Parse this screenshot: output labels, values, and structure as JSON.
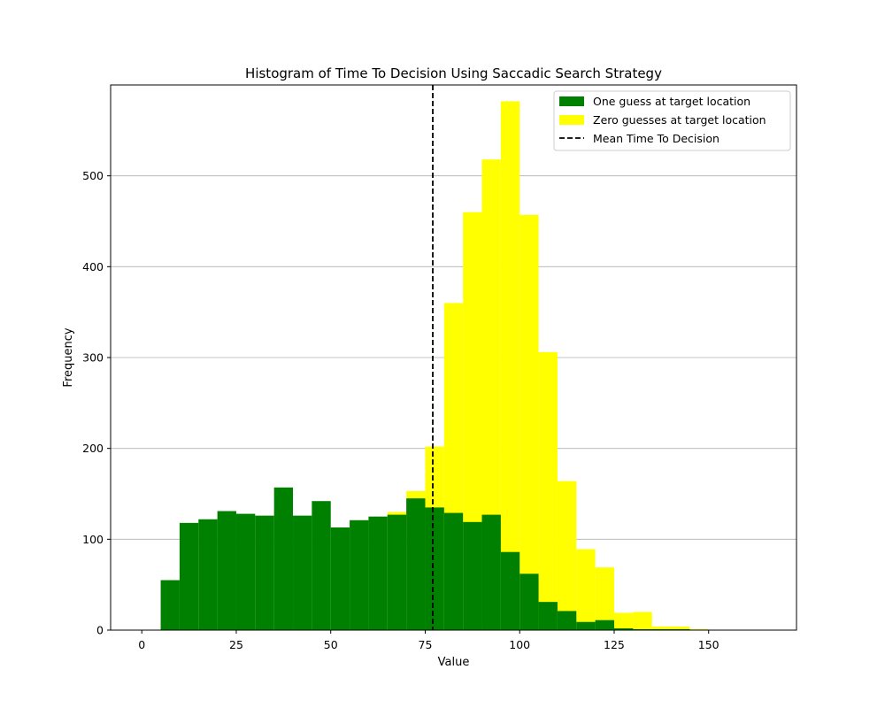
{
  "chart_data": {
    "type": "bar",
    "title": "Histogram of Time To Decision Using Saccadic Search Strategy",
    "xlabel": "Value",
    "ylabel": "Frequency",
    "xlim": [
      -8.25,
      173.25
    ],
    "ylim": [
      0,
      600
    ],
    "xticks": [
      0,
      25,
      50,
      75,
      100,
      125,
      150
    ],
    "yticks": [
      0,
      100,
      200,
      300,
      400,
      500
    ],
    "grid": "horizontal",
    "legend_position": "top-right",
    "bin_edges": [
      0,
      5,
      10,
      15,
      20,
      25,
      30,
      35,
      40,
      45,
      50,
      55,
      60,
      65,
      70,
      75,
      80,
      85,
      90,
      95,
      100,
      105,
      110,
      115,
      120,
      125,
      130,
      135,
      140,
      145,
      150,
      155,
      160,
      165
    ],
    "mean_line": {
      "name": "Mean Time To Decision",
      "x": 77,
      "color": "#000000",
      "style": "dashed"
    },
    "series": [
      {
        "name": "Zero guesses at target location",
        "color": "#ffff00",
        "values": [
          0,
          0,
          0,
          0,
          0,
          0,
          0,
          0,
          0,
          0,
          0,
          0,
          0,
          130,
          153,
          202,
          360,
          460,
          518,
          582,
          457,
          306,
          164,
          89,
          69,
          19,
          20,
          4,
          4,
          1,
          0,
          0,
          0
        ]
      },
      {
        "name": "One guess at target location",
        "color": "#008000",
        "values": [
          0,
          55,
          118,
          122,
          131,
          128,
          126,
          157,
          126,
          142,
          113,
          121,
          125,
          127,
          145,
          135,
          129,
          119,
          127,
          86,
          62,
          31,
          21,
          9,
          11,
          2,
          1,
          1,
          1,
          0,
          0,
          0,
          0
        ]
      }
    ]
  }
}
